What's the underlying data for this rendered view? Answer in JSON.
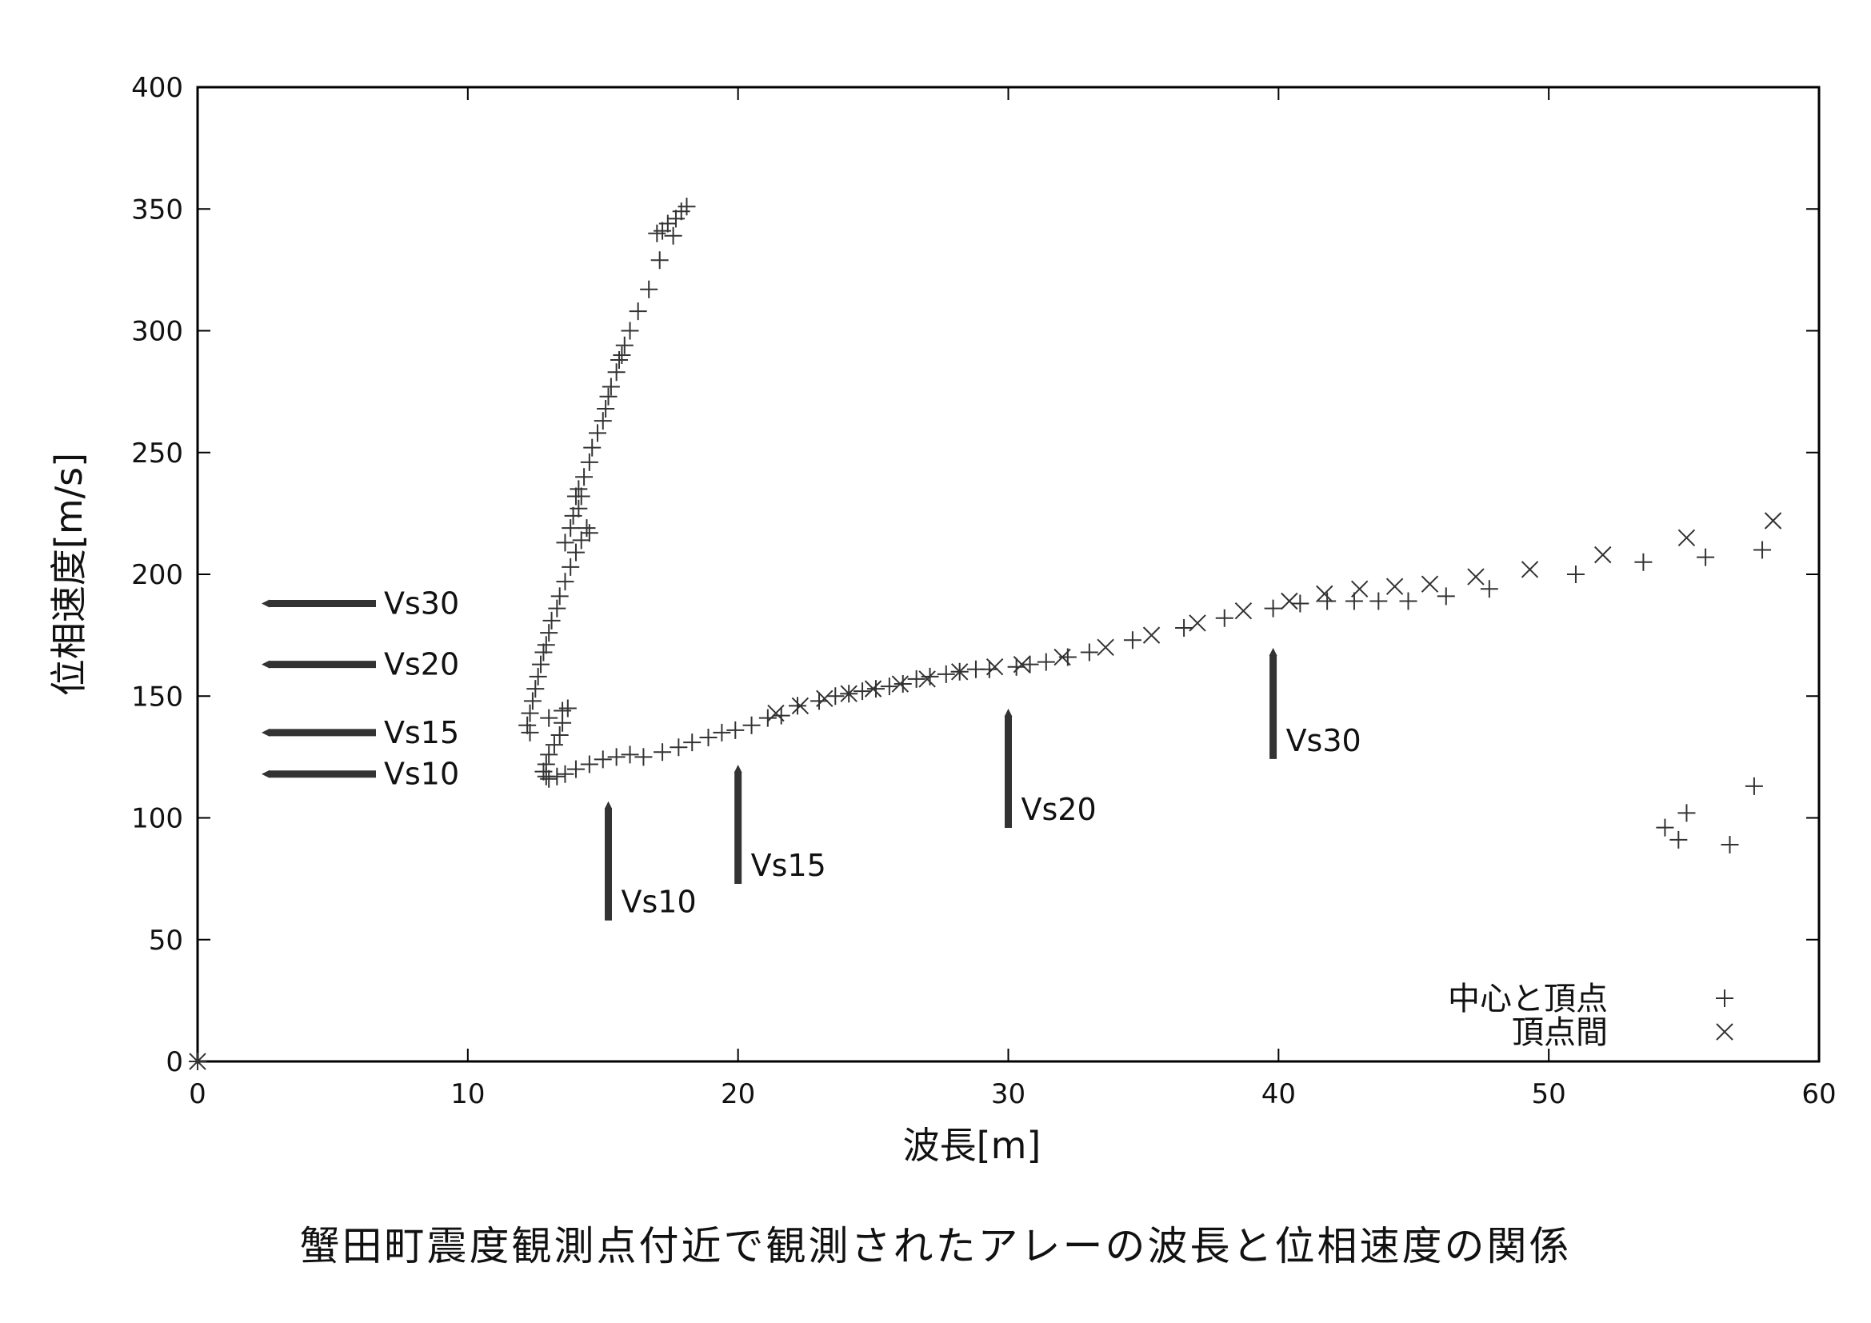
{
  "chart_data": {
    "type": "scatter",
    "xlabel": "波長[m]",
    "ylabel": "位相速度[m/s]",
    "xlim": [
      0,
      60
    ],
    "ylim": [
      0,
      400
    ],
    "xticks": [
      0,
      10,
      20,
      30,
      40,
      50,
      60
    ],
    "yticks": [
      0,
      50,
      100,
      150,
      200,
      250,
      300,
      350,
      400
    ],
    "grid": false,
    "legend_position": "bottom-right",
    "series": [
      {
        "name": "中心と頂点",
        "marker": "plus",
        "points": [
          [
            18.1,
            351
          ],
          [
            17.9,
            349
          ],
          [
            17.7,
            346
          ],
          [
            17.6,
            339
          ],
          [
            17.4,
            344
          ],
          [
            17.2,
            341
          ],
          [
            17.0,
            340
          ],
          [
            17.1,
            329
          ],
          [
            16.7,
            317
          ],
          [
            16.3,
            308
          ],
          [
            16.0,
            300
          ],
          [
            15.8,
            294
          ],
          [
            15.7,
            290
          ],
          [
            15.6,
            288
          ],
          [
            15.5,
            283
          ],
          [
            15.3,
            277
          ],
          [
            15.2,
            273
          ],
          [
            15.1,
            268
          ],
          [
            15.0,
            263
          ],
          [
            14.8,
            258
          ],
          [
            14.6,
            252
          ],
          [
            14.5,
            246
          ],
          [
            14.3,
            240
          ],
          [
            14.1,
            235
          ],
          [
            14.0,
            232
          ],
          [
            14.1,
            227
          ],
          [
            14.2,
            232
          ],
          [
            13.9,
            224
          ],
          [
            13.8,
            219
          ],
          [
            14.4,
            219
          ],
          [
            14.5,
            217
          ],
          [
            14.2,
            214
          ],
          [
            13.6,
            213
          ],
          [
            14.0,
            209
          ],
          [
            13.8,
            203
          ],
          [
            13.6,
            197
          ],
          [
            13.4,
            191
          ],
          [
            13.3,
            186
          ],
          [
            13.1,
            181
          ],
          [
            13.0,
            176
          ],
          [
            12.9,
            171
          ],
          [
            12.8,
            168
          ],
          [
            12.7,
            163
          ],
          [
            12.6,
            158
          ],
          [
            12.5,
            153
          ],
          [
            12.4,
            148
          ],
          [
            12.3,
            143
          ],
          [
            12.2,
            138
          ],
          [
            12.3,
            135
          ],
          [
            13.0,
            141
          ],
          [
            13.5,
            144
          ],
          [
            13.7,
            145
          ],
          [
            13.5,
            139
          ],
          [
            13.4,
            134
          ],
          [
            13.2,
            130
          ],
          [
            13.0,
            126
          ],
          [
            12.9,
            122
          ],
          [
            12.8,
            119
          ],
          [
            12.9,
            117
          ],
          [
            13.0,
            116
          ],
          [
            13.3,
            117
          ],
          [
            13.6,
            118
          ],
          [
            14.0,
            120
          ],
          [
            14.5,
            122
          ],
          [
            15.0,
            124
          ],
          [
            15.5,
            125
          ],
          [
            16.0,
            126
          ],
          [
            16.5,
            125
          ],
          [
            17.2,
            127
          ],
          [
            17.8,
            129
          ],
          [
            18.3,
            131
          ],
          [
            18.9,
            133
          ],
          [
            19.4,
            135
          ],
          [
            19.9,
            136
          ],
          [
            20.5,
            138
          ],
          [
            21.1,
            141
          ],
          [
            21.6,
            142
          ],
          [
            22.2,
            146
          ],
          [
            23.0,
            148
          ],
          [
            23.6,
            150
          ],
          [
            24.1,
            151
          ],
          [
            24.6,
            152
          ],
          [
            25.1,
            153
          ],
          [
            25.6,
            154
          ],
          [
            26.1,
            155
          ],
          [
            26.6,
            157
          ],
          [
            27.1,
            158
          ],
          [
            27.7,
            159
          ],
          [
            28.2,
            160
          ],
          [
            28.8,
            161
          ],
          [
            29.3,
            161
          ],
          [
            30.3,
            162
          ],
          [
            30.8,
            163
          ],
          [
            31.4,
            164
          ],
          [
            32.2,
            166
          ],
          [
            33.0,
            168
          ],
          [
            34.6,
            173
          ],
          [
            36.5,
            178
          ],
          [
            38.0,
            182
          ],
          [
            39.8,
            186
          ],
          [
            40.8,
            188
          ],
          [
            41.8,
            189
          ],
          [
            42.8,
            189
          ],
          [
            43.7,
            189
          ],
          [
            44.8,
            189
          ],
          [
            46.2,
            191
          ],
          [
            47.8,
            194
          ],
          [
            51.0,
            200
          ],
          [
            53.5,
            205
          ],
          [
            55.8,
            207
          ],
          [
            57.9,
            210
          ],
          [
            54.3,
            96
          ],
          [
            54.8,
            91
          ],
          [
            55.1,
            102
          ],
          [
            56.7,
            89
          ],
          [
            57.6,
            113
          ],
          [
            0,
            0
          ]
        ]
      },
      {
        "name": "頂点間",
        "marker": "cross",
        "points": [
          [
            21.4,
            143
          ],
          [
            22.3,
            146
          ],
          [
            23.2,
            149
          ],
          [
            24.1,
            151
          ],
          [
            25.0,
            153
          ],
          [
            26.0,
            155
          ],
          [
            27.0,
            157
          ],
          [
            28.2,
            160
          ],
          [
            29.5,
            162
          ],
          [
            30.5,
            163
          ],
          [
            32.0,
            166
          ],
          [
            33.6,
            170
          ],
          [
            35.3,
            175
          ],
          [
            37.0,
            180
          ],
          [
            38.7,
            185
          ],
          [
            40.4,
            189
          ],
          [
            41.7,
            192
          ],
          [
            43.0,
            194
          ],
          [
            44.3,
            195
          ],
          [
            45.6,
            196
          ],
          [
            47.3,
            199
          ],
          [
            49.3,
            202
          ],
          [
            52.0,
            208
          ],
          [
            55.1,
            215
          ],
          [
            58.3,
            222
          ],
          [
            0,
            0
          ]
        ]
      }
    ],
    "annotations": [
      {
        "label": "Vs30",
        "direction": "left",
        "y": 188
      },
      {
        "label": "Vs20",
        "direction": "left",
        "y": 163
      },
      {
        "label": "Vs15",
        "direction": "left",
        "y": 135
      },
      {
        "label": "Vs10",
        "direction": "left",
        "y": 118
      },
      {
        "label": "Vs10",
        "direction": "up",
        "x": 15.2
      },
      {
        "label": "Vs15",
        "direction": "up",
        "x": 20.0
      },
      {
        "label": "Vs20",
        "direction": "up",
        "x": 30.0
      },
      {
        "label": "Vs30",
        "direction": "up",
        "x": 39.8
      }
    ]
  },
  "caption": "蟹田町震度観測点付近で観測されたアレーの波長と位相速度の関係"
}
